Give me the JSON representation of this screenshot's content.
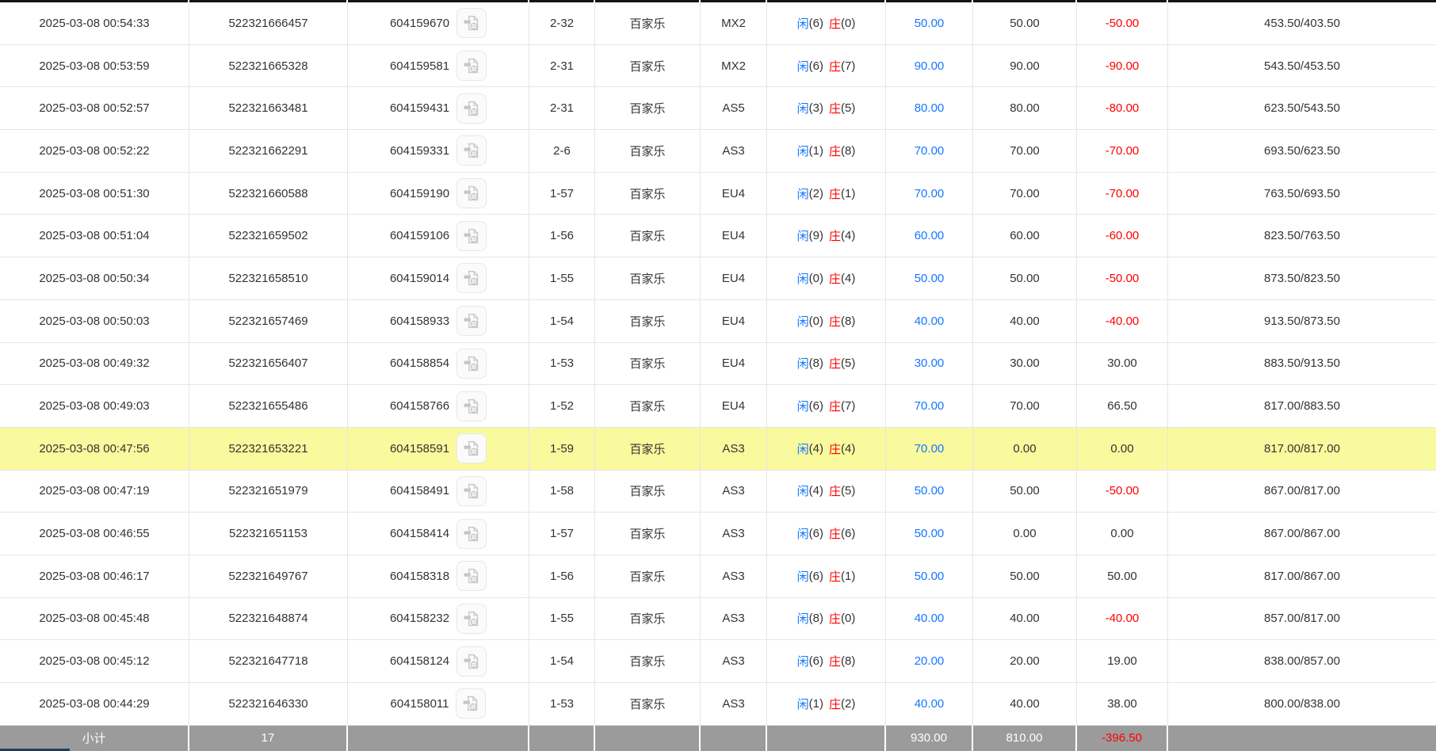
{
  "colors": {
    "bet_amount_blue": "#1677ff",
    "loss_red": "#ff0000",
    "highlight_yellow": "#f9f99e",
    "footer_gray": "#9b9b9b"
  },
  "icons": {
    "game_video": "video-replay-icon"
  },
  "table": {
    "rows": [
      {
        "time": "2025-03-08 00:54:33",
        "bet_number": "522321666457",
        "game_number": "604159670",
        "round": "2-32",
        "game_type": "百家乐",
        "table_code": "MX2",
        "result": {
          "player_label": "闲",
          "player_score": "(6)",
          "banker_label": "庄",
          "banker_score": "(0)"
        },
        "bet_amount": "50.00",
        "valid_amount": "50.00",
        "win_loss": "-50.00",
        "balance": "453.50/403.50",
        "highlight": false
      },
      {
        "time": "2025-03-08 00:53:59",
        "bet_number": "522321665328",
        "game_number": "604159581",
        "round": "2-31",
        "game_type": "百家乐",
        "table_code": "MX2",
        "result": {
          "player_label": "闲",
          "player_score": "(6)",
          "banker_label": "庄",
          "banker_score": "(7)"
        },
        "bet_amount": "90.00",
        "valid_amount": "90.00",
        "win_loss": "-90.00",
        "balance": "543.50/453.50",
        "highlight": false
      },
      {
        "time": "2025-03-08 00:52:57",
        "bet_number": "522321663481",
        "game_number": "604159431",
        "round": "2-31",
        "game_type": "百家乐",
        "table_code": "AS5",
        "result": {
          "player_label": "闲",
          "player_score": "(3)",
          "banker_label": "庄",
          "banker_score": "(5)"
        },
        "bet_amount": "80.00",
        "valid_amount": "80.00",
        "win_loss": "-80.00",
        "balance": "623.50/543.50",
        "highlight": false
      },
      {
        "time": "2025-03-08 00:52:22",
        "bet_number": "522321662291",
        "game_number": "604159331",
        "round": "2-6",
        "game_type": "百家乐",
        "table_code": "AS3",
        "result": {
          "player_label": "闲",
          "player_score": "(1)",
          "banker_label": "庄",
          "banker_score": "(8)"
        },
        "bet_amount": "70.00",
        "valid_amount": "70.00",
        "win_loss": "-70.00",
        "balance": "693.50/623.50",
        "highlight": false
      },
      {
        "time": "2025-03-08 00:51:30",
        "bet_number": "522321660588",
        "game_number": "604159190",
        "round": "1-57",
        "game_type": "百家乐",
        "table_code": "EU4",
        "result": {
          "player_label": "闲",
          "player_score": "(2)",
          "banker_label": "庄",
          "banker_score": "(1)"
        },
        "bet_amount": "70.00",
        "valid_amount": "70.00",
        "win_loss": "-70.00",
        "balance": "763.50/693.50",
        "highlight": false
      },
      {
        "time": "2025-03-08 00:51:04",
        "bet_number": "522321659502",
        "game_number": "604159106",
        "round": "1-56",
        "game_type": "百家乐",
        "table_code": "EU4",
        "result": {
          "player_label": "闲",
          "player_score": "(9)",
          "banker_label": "庄",
          "banker_score": "(4)"
        },
        "bet_amount": "60.00",
        "valid_amount": "60.00",
        "win_loss": "-60.00",
        "balance": "823.50/763.50",
        "highlight": false
      },
      {
        "time": "2025-03-08 00:50:34",
        "bet_number": "522321658510",
        "game_number": "604159014",
        "round": "1-55",
        "game_type": "百家乐",
        "table_code": "EU4",
        "result": {
          "player_label": "闲",
          "player_score": "(0)",
          "banker_label": "庄",
          "banker_score": "(4)"
        },
        "bet_amount": "50.00",
        "valid_amount": "50.00",
        "win_loss": "-50.00",
        "balance": "873.50/823.50",
        "highlight": false
      },
      {
        "time": "2025-03-08 00:50:03",
        "bet_number": "522321657469",
        "game_number": "604158933",
        "round": "1-54",
        "game_type": "百家乐",
        "table_code": "EU4",
        "result": {
          "player_label": "闲",
          "player_score": "(0)",
          "banker_label": "庄",
          "banker_score": "(8)"
        },
        "bet_amount": "40.00",
        "valid_amount": "40.00",
        "win_loss": "-40.00",
        "balance": "913.50/873.50",
        "highlight": false
      },
      {
        "time": "2025-03-08 00:49:32",
        "bet_number": "522321656407",
        "game_number": "604158854",
        "round": "1-53",
        "game_type": "百家乐",
        "table_code": "EU4",
        "result": {
          "player_label": "闲",
          "player_score": "(8)",
          "banker_label": "庄",
          "banker_score": "(5)"
        },
        "bet_amount": "30.00",
        "valid_amount": "30.00",
        "win_loss": "30.00",
        "balance": "883.50/913.50",
        "highlight": false
      },
      {
        "time": "2025-03-08 00:49:03",
        "bet_number": "522321655486",
        "game_number": "604158766",
        "round": "1-52",
        "game_type": "百家乐",
        "table_code": "EU4",
        "result": {
          "player_label": "闲",
          "player_score": "(6)",
          "banker_label": "庄",
          "banker_score": "(7)"
        },
        "bet_amount": "70.00",
        "valid_amount": "70.00",
        "win_loss": "66.50",
        "balance": "817.00/883.50",
        "highlight": false
      },
      {
        "time": "2025-03-08 00:47:56",
        "bet_number": "522321653221",
        "game_number": "604158591",
        "round": "1-59",
        "game_type": "百家乐",
        "table_code": "AS3",
        "result": {
          "player_label": "闲",
          "player_score": "(4)",
          "banker_label": "庄",
          "banker_score": "(4)"
        },
        "bet_amount": "70.00",
        "valid_amount": "0.00",
        "win_loss": "0.00",
        "balance": "817.00/817.00",
        "highlight": true
      },
      {
        "time": "2025-03-08 00:47:19",
        "bet_number": "522321651979",
        "game_number": "604158491",
        "round": "1-58",
        "game_type": "百家乐",
        "table_code": "AS3",
        "result": {
          "player_label": "闲",
          "player_score": "(4)",
          "banker_label": "庄",
          "banker_score": "(5)"
        },
        "bet_amount": "50.00",
        "valid_amount": "50.00",
        "win_loss": "-50.00",
        "balance": "867.00/817.00",
        "highlight": false
      },
      {
        "time": "2025-03-08 00:46:55",
        "bet_number": "522321651153",
        "game_number": "604158414",
        "round": "1-57",
        "game_type": "百家乐",
        "table_code": "AS3",
        "result": {
          "player_label": "闲",
          "player_score": "(6)",
          "banker_label": "庄",
          "banker_score": "(6)"
        },
        "bet_amount": "50.00",
        "valid_amount": "0.00",
        "win_loss": "0.00",
        "balance": "867.00/867.00",
        "highlight": false
      },
      {
        "time": "2025-03-08 00:46:17",
        "bet_number": "522321649767",
        "game_number": "604158318",
        "round": "1-56",
        "game_type": "百家乐",
        "table_code": "AS3",
        "result": {
          "player_label": "闲",
          "player_score": "(6)",
          "banker_label": "庄",
          "banker_score": "(1)"
        },
        "bet_amount": "50.00",
        "valid_amount": "50.00",
        "win_loss": "50.00",
        "balance": "817.00/867.00",
        "highlight": false
      },
      {
        "time": "2025-03-08 00:45:48",
        "bet_number": "522321648874",
        "game_number": "604158232",
        "round": "1-55",
        "game_type": "百家乐",
        "table_code": "AS3",
        "result": {
          "player_label": "闲",
          "player_score": "(8)",
          "banker_label": "庄",
          "banker_score": "(0)"
        },
        "bet_amount": "40.00",
        "valid_amount": "40.00",
        "win_loss": "-40.00",
        "balance": "857.00/817.00",
        "highlight": false
      },
      {
        "time": "2025-03-08 00:45:12",
        "bet_number": "522321647718",
        "game_number": "604158124",
        "round": "1-54",
        "game_type": "百家乐",
        "table_code": "AS3",
        "result": {
          "player_label": "闲",
          "player_score": "(6)",
          "banker_label": "庄",
          "banker_score": "(8)"
        },
        "bet_amount": "20.00",
        "valid_amount": "20.00",
        "win_loss": "19.00",
        "balance": "838.00/857.00",
        "highlight": false
      },
      {
        "time": "2025-03-08 00:44:29",
        "bet_number": "522321646330",
        "game_number": "604158011",
        "round": "1-53",
        "game_type": "百家乐",
        "table_code": "AS3",
        "result": {
          "player_label": "闲",
          "player_score": "(1)",
          "banker_label": "庄",
          "banker_score": "(2)"
        },
        "bet_amount": "40.00",
        "valid_amount": "40.00",
        "win_loss": "38.00",
        "balance": "800.00/838.00",
        "highlight": false
      }
    ]
  },
  "footer": {
    "label": "小计",
    "count": "17",
    "bet_total": "930.00",
    "valid_total": "810.00",
    "win_loss_total": "-396.50"
  }
}
